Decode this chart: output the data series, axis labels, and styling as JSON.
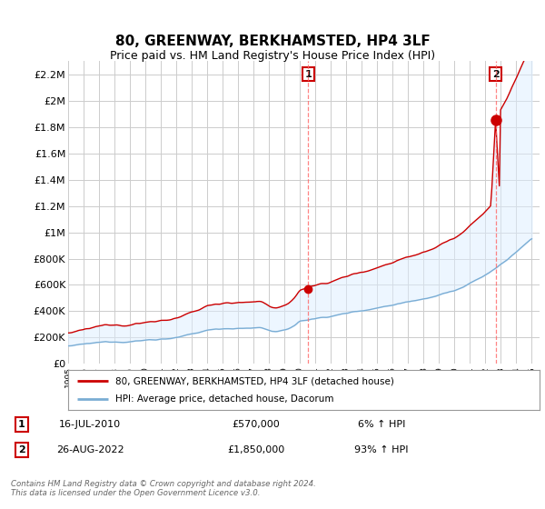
{
  "title": "80, GREENWAY, BERKHAMSTED, HP4 3LF",
  "subtitle": "Price paid vs. HM Land Registry's House Price Index (HPI)",
  "ylabel_ticks": [
    "£0",
    "£200K",
    "£400K",
    "£600K",
    "£800K",
    "£1M",
    "£1.2M",
    "£1.4M",
    "£1.6M",
    "£1.8M",
    "£2M",
    "£2.2M"
  ],
  "ytick_values": [
    0,
    200000,
    400000,
    600000,
    800000,
    1000000,
    1200000,
    1400000,
    1600000,
    1800000,
    2000000,
    2200000
  ],
  "ylim": [
    0,
    2300000
  ],
  "xlim_start": 1995.0,
  "xlim_end": 2025.5,
  "sale1_x": 2010.54,
  "sale1_y": 570000,
  "sale2_x": 2022.65,
  "sale2_y": 1850000,
  "sale1_label": "1",
  "sale2_label": "2",
  "sale1_date": "16-JUL-2010",
  "sale1_price": "£570,000",
  "sale1_hpi": "6% ↑ HPI",
  "sale2_date": "26-AUG-2022",
  "sale2_price": "£1,850,000",
  "sale2_hpi": "93% ↑ HPI",
  "legend_line1": "80, GREENWAY, BERKHAMSTED, HP4 3LF (detached house)",
  "legend_line2": "HPI: Average price, detached house, Dacorum",
  "footer": "Contains HM Land Registry data © Crown copyright and database right 2024.\nThis data is licensed under the Open Government Licence v3.0.",
  "line_color_red": "#cc0000",
  "line_color_blue": "#7aadd4",
  "fill_color_blue": "#ddeeff",
  "background_color": "#ffffff",
  "grid_color": "#cccccc",
  "title_fontsize": 11,
  "subtitle_fontsize": 9,
  "axis_fontsize": 8
}
